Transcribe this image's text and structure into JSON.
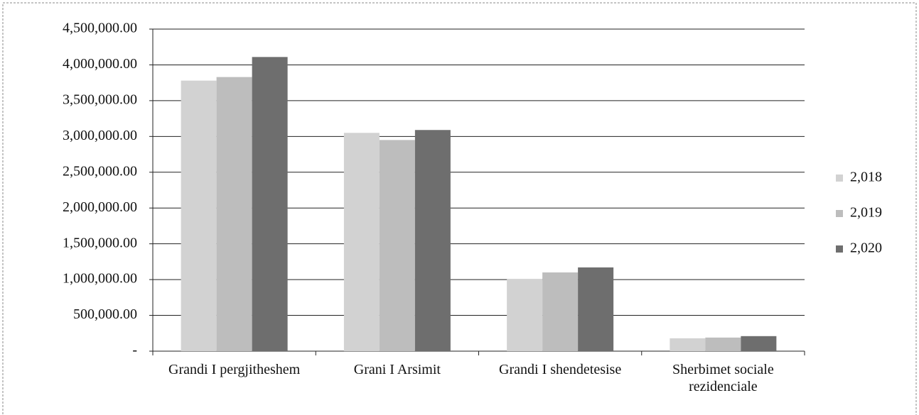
{
  "chart_data": {
    "type": "bar",
    "categories": [
      "Grandi I pergjitheshem",
      "Grani I Arsimit",
      "Grandi I shendetesise",
      "Sherbimet sociale rezidenciale"
    ],
    "series": [
      {
        "name": "2,018",
        "color": "#d2d2d2",
        "values": [
          3780000,
          3050000,
          1010000,
          180000
        ]
      },
      {
        "name": "2,019",
        "color": "#bdbdbd",
        "values": [
          3830000,
          2950000,
          1100000,
          190000
        ]
      },
      {
        "name": "2,020",
        "color": "#6e6e6e",
        "values": [
          4110000,
          3090000,
          1170000,
          210000
        ]
      }
    ],
    "ylim": [
      0,
      4500000
    ],
    "yticks": [
      {
        "value": 0,
        "label": "-"
      },
      {
        "value": 500000,
        "label": "500,000.00"
      },
      {
        "value": 1000000,
        "label": "1,000,000.00"
      },
      {
        "value": 1500000,
        "label": "1,500,000.00"
      },
      {
        "value": 2000000,
        "label": "2,000,000.00"
      },
      {
        "value": 2500000,
        "label": "2,500,000.00"
      },
      {
        "value": 3000000,
        "label": "3,000,000.00"
      },
      {
        "value": 3500000,
        "label": "3,500,000.00"
      },
      {
        "value": 4000000,
        "label": "4,000,000.00"
      },
      {
        "value": 4500000,
        "label": "4,500,000.00"
      }
    ],
    "grid": true,
    "legend": "right"
  }
}
